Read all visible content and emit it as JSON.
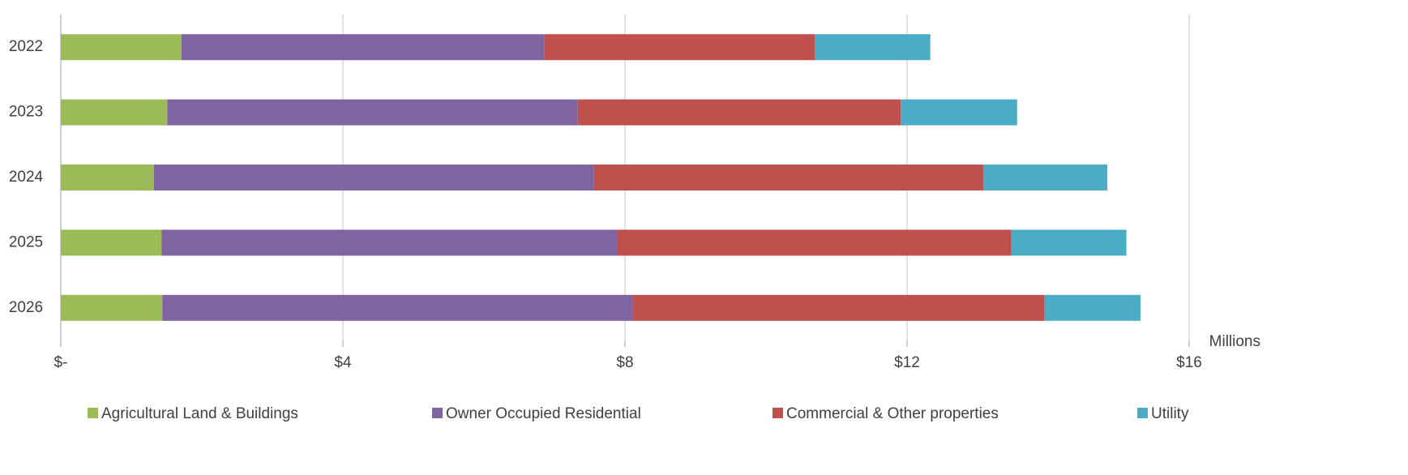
{
  "chart_data": {
    "type": "stacked_barh",
    "categories": [
      "2022",
      "2023",
      "2024",
      "2025",
      "2026"
    ],
    "series": [
      {
        "name": "Agricultural Land & Buildings",
        "color": "#9bbb59",
        "values": [
          1.71,
          1.51,
          1.32,
          1.43,
          1.44
        ]
      },
      {
        "name": "Owner Occupied Residential",
        "color": "#8064a2",
        "values": [
          5.15,
          5.82,
          6.24,
          6.46,
          6.67
        ]
      },
      {
        "name": "Commercial & Other properties",
        "color": "#c0504d",
        "values": [
          3.83,
          4.58,
          5.52,
          5.59,
          5.84
        ]
      },
      {
        "name": "Utility",
        "color": "#4bacc6",
        "values": [
          1.64,
          1.65,
          1.76,
          1.63,
          1.36
        ]
      }
    ],
    "x_unit_label": "Millions",
    "xlim": [
      0,
      16
    ],
    "xticks": [
      {
        "value": 0,
        "label": "$-"
      },
      {
        "value": 4,
        "label": "$4"
      },
      {
        "value": 8,
        "label": "$8"
      },
      {
        "value": 12,
        "label": "$12"
      },
      {
        "value": 16,
        "label": "$16"
      }
    ],
    "grid": true,
    "legend": "bottom"
  }
}
